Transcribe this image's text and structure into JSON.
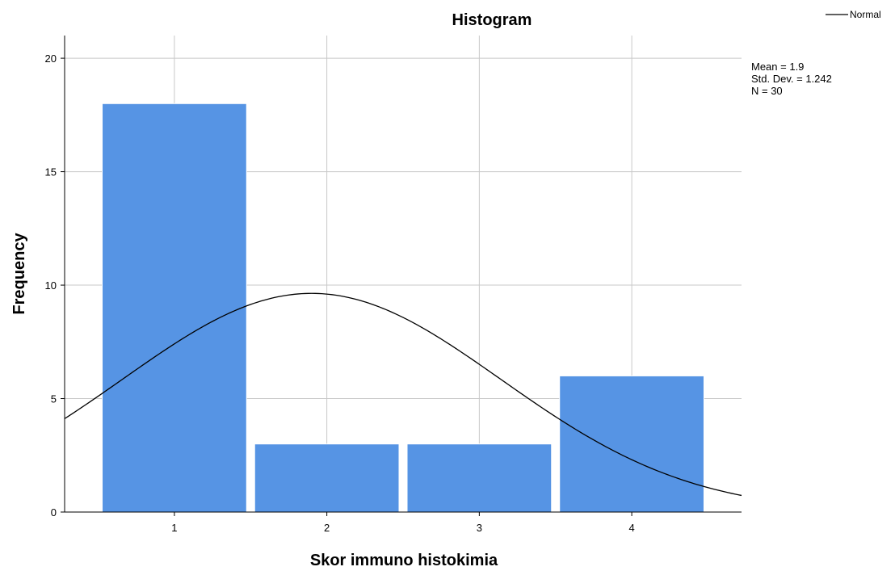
{
  "chart_data": {
    "type": "bar",
    "title": "Histogram",
    "xlabel": "Skor immuno histokimia",
    "ylabel": "Frequency",
    "categories": [
      "1",
      "2",
      "3",
      "4"
    ],
    "values": [
      18,
      3,
      3,
      6
    ],
    "x_range": [
      0.28,
      4.72
    ],
    "ylim": [
      0,
      21
    ],
    "y_ticks": [
      "0",
      "5",
      "10",
      "15",
      "20"
    ],
    "grid": true,
    "bar_color": "#5694e4",
    "normal_curve": {
      "mean": 1.9,
      "std": 1.242,
      "n": 30,
      "bin_width": 1,
      "color": "#000000"
    },
    "legend": {
      "position": "top-right",
      "items": [
        {
          "label": "Normal"
        }
      ]
    },
    "stats": [
      "Mean = 1.9",
      "Std. Dev. = 1.242",
      "N = 30"
    ]
  }
}
